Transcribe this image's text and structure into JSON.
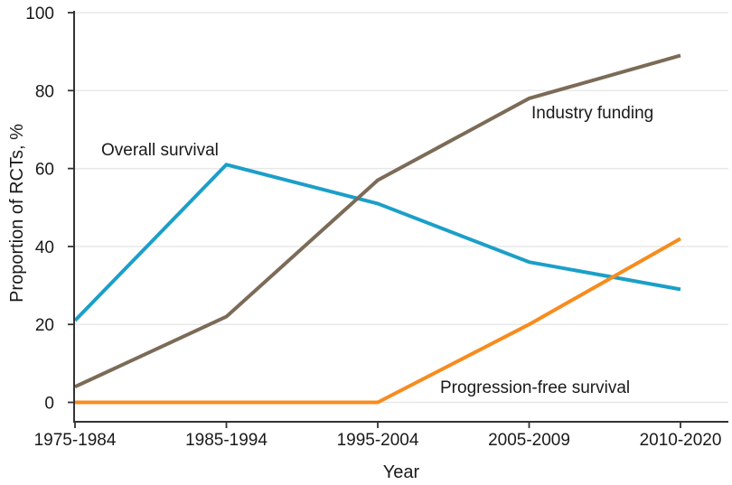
{
  "chart_data": {
    "type": "line",
    "categories": [
      "1975-1984",
      "1985-1994",
      "1995-2004",
      "2005-2009",
      "2010-2020"
    ],
    "series": [
      {
        "name": "Overall survival",
        "color": "#1B9FC9",
        "values": [
          21,
          61,
          51,
          36,
          29
        ]
      },
      {
        "name": "Industry funding",
        "color": "#7B6B57",
        "values": [
          4,
          22,
          57,
          78,
          89
        ]
      },
      {
        "name": "Progression-free survival",
        "color": "#F78C1E",
        "values": [
          0,
          0,
          0,
          20,
          42
        ]
      }
    ],
    "title": "",
    "xlabel": "Year",
    "ylabel": "Proportion of RCTs, %",
    "ylim": [
      0,
      100
    ],
    "yticks": [
      0,
      20,
      40,
      60,
      80,
      100
    ],
    "grid": true,
    "gridline_color": "#E8E8E8",
    "axis_color": "#333333",
    "text_color": "#1A1A1A",
    "legend_position": "none",
    "annotations": [
      {
        "text": "Overall survival",
        "x": 112,
        "y": 172
      },
      {
        "text": "Industry funding",
        "x": 588,
        "y": 131
      },
      {
        "text": "Progression-free survival",
        "x": 487,
        "y": 435
      }
    ]
  }
}
